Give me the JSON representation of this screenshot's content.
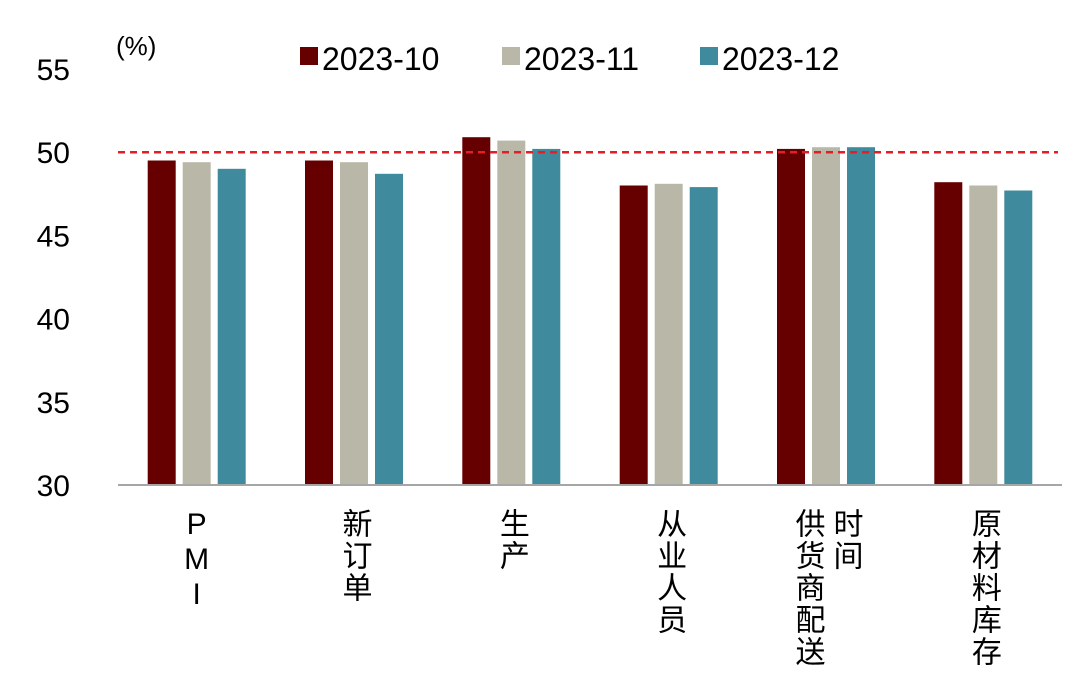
{
  "chart_data": {
    "type": "bar",
    "unit_label": "(%)",
    "categories": [
      [
        "PMI"
      ],
      [
        "新订单"
      ],
      [
        "生产"
      ],
      [
        "从业人员"
      ],
      [
        "供货商配送",
        "时间"
      ],
      [
        "原材料库存"
      ]
    ],
    "series": [
      {
        "name": "2023-10",
        "color": "#660000",
        "values": [
          49.5,
          49.5,
          50.9,
          48.0,
          50.2,
          48.2
        ]
      },
      {
        "name": "2023-11",
        "color": "#B9B8A8",
        "values": [
          49.4,
          49.4,
          50.7,
          48.1,
          50.3,
          48.0
        ]
      },
      {
        "name": "2023-12",
        "color": "#3F8A9C",
        "values": [
          49.0,
          48.7,
          50.2,
          47.9,
          50.3,
          47.7
        ]
      }
    ],
    "ylim": [
      30,
      55
    ],
    "yticks": [
      30,
      35,
      40,
      45,
      50,
      55
    ],
    "reference_line": {
      "value": 50,
      "color": "#E41E26",
      "style": "dashed"
    },
    "legend_position": "top",
    "grid": false
  }
}
